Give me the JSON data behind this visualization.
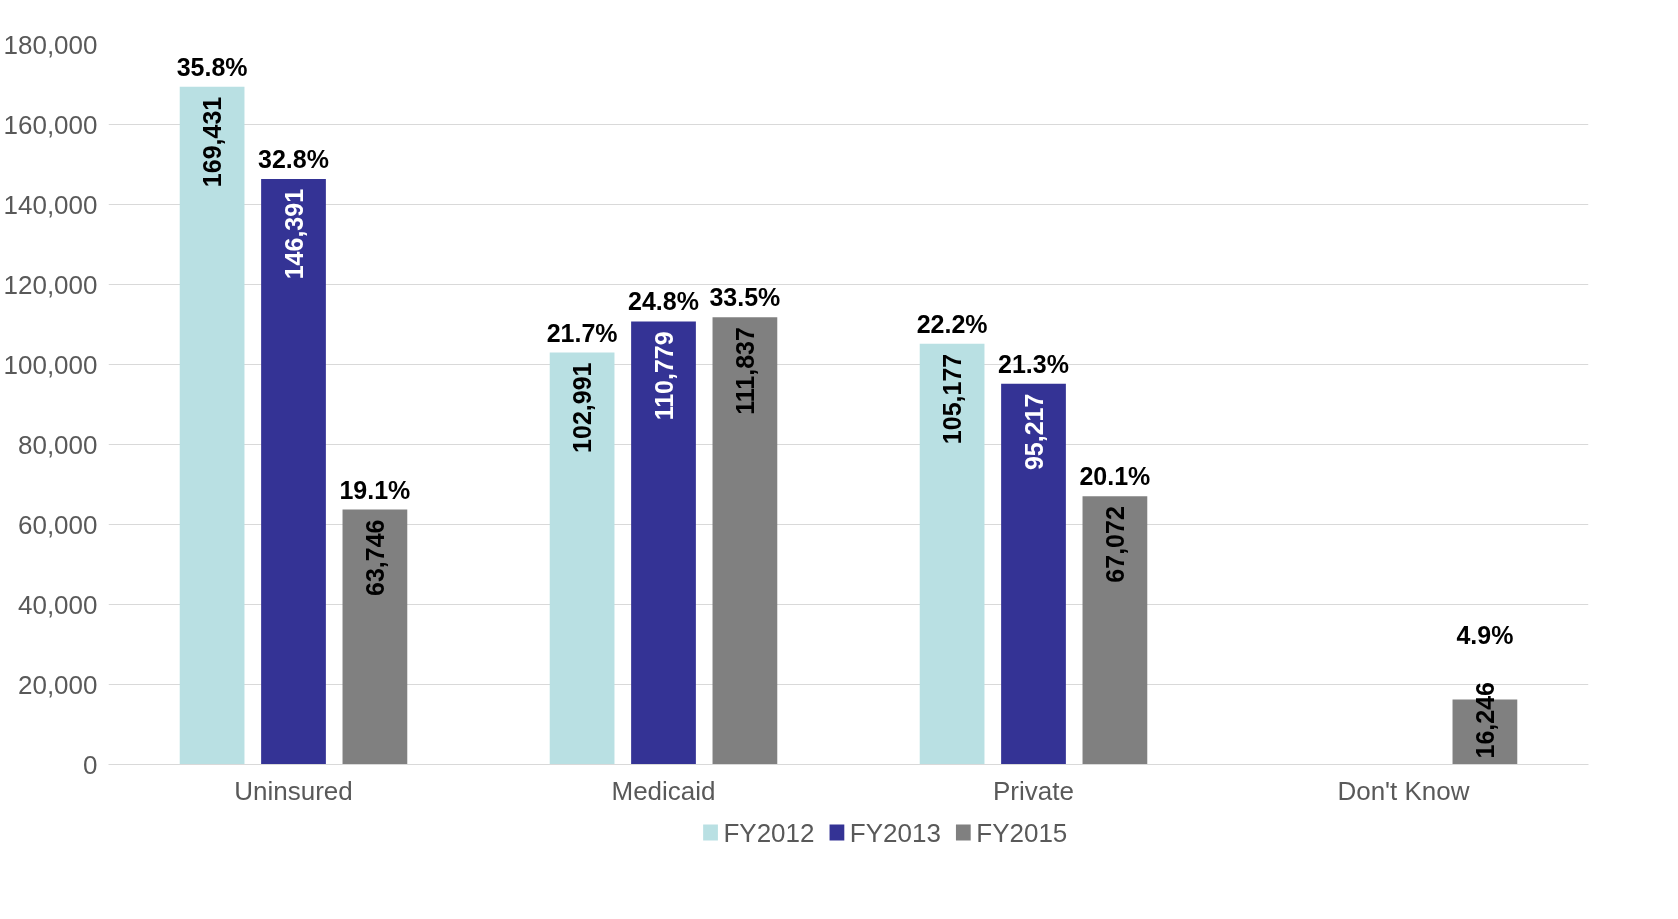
{
  "chart_data": {
    "type": "bar",
    "categories": [
      "Uninsured",
      "Medicaid",
      "Private",
      "Don't Know"
    ],
    "series": [
      {
        "name": "FY2012",
        "color": "#b9e0e3",
        "values": [
          169431,
          102991,
          105177,
          null
        ],
        "value_labels": [
          "169,431",
          "102,991",
          "105,177",
          null
        ]
      },
      {
        "name": "FY2013",
        "color": "#343395",
        "values": [
          146391,
          110779,
          95217,
          null
        ],
        "value_labels": [
          "146,391",
          "110,779",
          "95,217",
          null
        ]
      },
      {
        "name": "FY2015",
        "color": "#808080",
        "values": [
          63746,
          111837,
          67072,
          16246
        ],
        "value_labels": [
          "63,746",
          "111,837",
          "67,072",
          "16,246"
        ]
      }
    ],
    "annotations": [
      "35.8%",
      "32.8%",
      "19.1%",
      "21.7%",
      "24.8%",
      "33.5%",
      "22.2%",
      "21.3%",
      "20.1%",
      "4.9%"
    ],
    "ylim": [
      0,
      180000
    ],
    "yticks": [
      {
        "value": 0,
        "label": "0"
      },
      {
        "value": 20000,
        "label": "20,000"
      },
      {
        "value": 40000,
        "label": "40,000"
      },
      {
        "value": 60000,
        "label": "60,000"
      },
      {
        "value": 80000,
        "label": "80,000"
      },
      {
        "value": 100000,
        "label": "100,000"
      },
      {
        "value": 120000,
        "label": "120,000"
      },
      {
        "value": 140000,
        "label": "140,000"
      },
      {
        "value": 160000,
        "label": "160,000"
      },
      {
        "value": 180000,
        "label": "180,000"
      }
    ],
    "grid": "y",
    "legend": "bottom"
  }
}
